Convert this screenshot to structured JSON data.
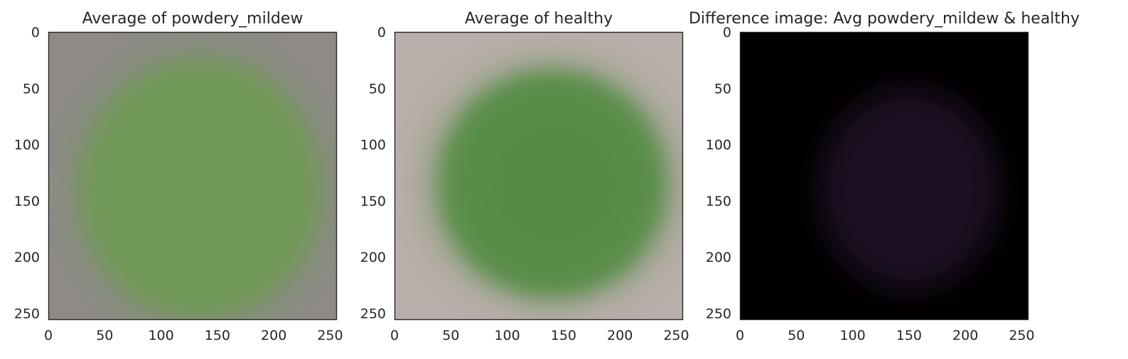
{
  "chart_data": [
    {
      "type": "image",
      "title": "Average of powdery_mildew",
      "xlabel": "",
      "ylabel": "",
      "xlim": [
        0,
        256
      ],
      "ylim": [
        256,
        0
      ],
      "xticks": [
        0,
        50,
        100,
        150,
        200,
        250
      ],
      "yticks": [
        0,
        50,
        100,
        150,
        200,
        250
      ],
      "grid": false,
      "image_content": "average leaf image",
      "background_color": "#8e8a88",
      "leaf_color": "#6e9a52",
      "leaf_center": [
        135,
        140
      ],
      "leaf_radius": [
        105,
        115
      ]
    },
    {
      "type": "image",
      "title": "Average of healthy",
      "xlabel": "",
      "ylabel": "",
      "xlim": [
        0,
        256
      ],
      "ylim": [
        256,
        0
      ],
      "xticks": [
        0,
        50,
        100,
        150,
        200,
        250
      ],
      "yticks": [
        0,
        50,
        100,
        150,
        200,
        250
      ],
      "grid": false,
      "image_content": "average leaf image",
      "background_color": "#b9aeaa",
      "leaf_color": "#4f8a40",
      "leaf_center": [
        140,
        135
      ],
      "leaf_radius": [
        100,
        100
      ]
    },
    {
      "type": "image",
      "title": "Difference image: Avg powdery_mildew & healthy",
      "xlabel": "",
      "ylabel": "",
      "xlim": [
        0,
        256
      ],
      "ylim": [
        256,
        0
      ],
      "xticks": [
        0,
        50,
        100,
        150,
        200,
        250
      ],
      "yticks": [
        0,
        50,
        100,
        150,
        200,
        250
      ],
      "grid": false,
      "image_content": "difference image",
      "background_color": "#000000",
      "leaf_color": "#2a1830",
      "leaf_center": [
        150,
        140
      ],
      "leaf_radius": [
        80,
        90
      ]
    }
  ]
}
